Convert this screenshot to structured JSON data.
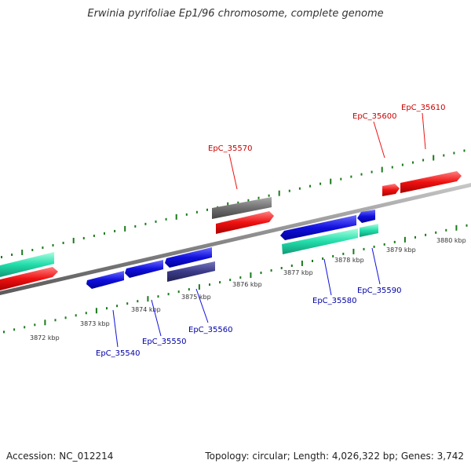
{
  "title": "Erwinia pyrifoliae Ep1/96 chromosome, complete genome",
  "footer": {
    "accession": "Accession: NC_012214",
    "topology": "Topology: circular; Length: 4,026,322 bp; Genes: 3,742"
  },
  "colors": {
    "axis": "#8a8a8a",
    "ticks": "#1a7a1a",
    "forward_cds": "#ee1111",
    "reverse_cds": "#1010dd",
    "forward_rna": "#707070",
    "reverse_rna": "#3a3a88",
    "repeat": "#22ddaa",
    "forward_label": "#cc0000",
    "reverse_label": "#0000aa"
  },
  "tick_labels": [
    "3872 kbp",
    "3873 kbp",
    "3874 kbp",
    "3875 kbp",
    "3876 kbp",
    "3877 kbp",
    "3878 kbp",
    "3879 kbp",
    "3880 kbp"
  ],
  "gene_labels": {
    "forward": [
      "EpC_35570",
      "EpC_35600",
      "EpC_35610"
    ],
    "reverse": [
      "EpC_35540",
      "EpC_35550",
      "EpC_35560",
      "EpC_35580",
      "EpC_35590"
    ]
  }
}
